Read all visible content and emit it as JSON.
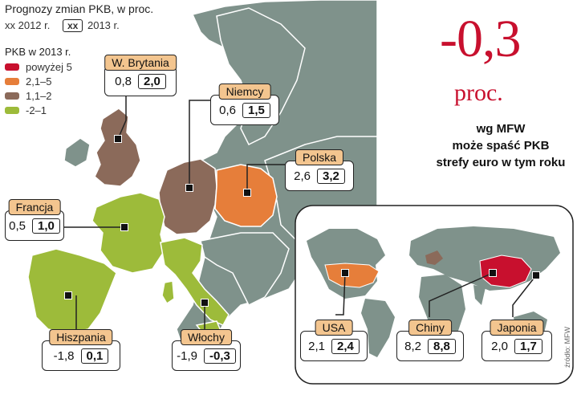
{
  "header": {
    "title": "Prognozy zmian PKB, w proc.",
    "legend_year_2012": "xx 2012 r.",
    "legend_xx": "xx",
    "legend_year_2013": "2013 r."
  },
  "legend": {
    "title": "PKB w 2013 r.",
    "items": [
      {
        "label": "powyżej 5",
        "color": "#c8102e"
      },
      {
        "label": "2,1–5",
        "color": "#e67e3a"
      },
      {
        "label": "1,1–2",
        "color": "#8b6a5a"
      },
      {
        "label": "-2–1",
        "color": "#9dbb3a"
      }
    ]
  },
  "highlight": {
    "number": "-0,3",
    "unit": "proc.",
    "line1": "wg MFW",
    "line2": "może spaść PKB",
    "line3": "strefy euro w tym roku"
  },
  "countries": [
    {
      "name": "W. Brytania",
      "v2012": "0,8",
      "v2013": "2,0"
    },
    {
      "name": "Niemcy",
      "v2012": "0,6",
      "v2013": "1,5"
    },
    {
      "name": "Polska",
      "v2012": "2,6",
      "v2013": "3,2"
    },
    {
      "name": "Francja",
      "v2012": "0,5",
      "v2013": "1,0"
    },
    {
      "name": "Hiszpania",
      "v2012": "-1,8",
      "v2013": "0,1"
    },
    {
      "name": "Włochy",
      "v2012": "-1,9",
      "v2013": "-0,3"
    },
    {
      "name": "USA",
      "v2012": "2,1",
      "v2013": "2,4"
    },
    {
      "name": "Chiny",
      "v2012": "8,2",
      "v2013": "8,8"
    },
    {
      "name": "Japonia",
      "v2012": "2,0",
      "v2013": "1,7"
    }
  ],
  "source": "źródło: MFW",
  "colors": {
    "land_gray": "#7f928b",
    "water": "#ffffff",
    "uk": "#8b6a5a",
    "germany": "#8b6a5a",
    "poland": "#e67e3a",
    "france": "#9dbb3a",
    "spain": "#9dbb3a",
    "italy": "#9dbb3a",
    "usa": "#e67e3a",
    "china": "#c8102e",
    "label_head": "#f3c58f"
  }
}
